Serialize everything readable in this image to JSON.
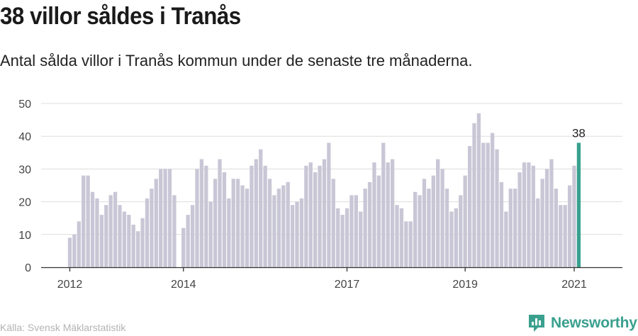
{
  "header": {
    "title": "38 villor såldes i Tranås",
    "subtitle": "Antal sålda villor i Tranås kommun under de senaste tre månaderna."
  },
  "footer": {
    "source": "Källa: Svensk Mäklarstatistik",
    "brand": "Newsworthy",
    "brand_icon": "newsworthy-logo-icon"
  },
  "colors": {
    "bar": "#c9c7d6",
    "highlight": "#3aa08e",
    "grid": "#dddddd",
    "axis": "#333333",
    "brand": "#3aa08e"
  },
  "chart_data": {
    "type": "bar",
    "title": "",
    "xlabel": "",
    "ylabel": "",
    "ylim": [
      0,
      50
    ],
    "yticks": [
      0,
      10,
      20,
      30,
      40,
      50
    ],
    "xtick_labels": [
      "2012",
      "2014",
      "2017",
      "2019",
      "2021"
    ],
    "grid": true,
    "series": [
      {
        "values": [
          9,
          10,
          14,
          28,
          28,
          23,
          21,
          16,
          19,
          22,
          23,
          19,
          17,
          16,
          13,
          11,
          15,
          21,
          24,
          27,
          30,
          30,
          30,
          22,
          null,
          12,
          16,
          19,
          30,
          33,
          31,
          20,
          27,
          33,
          29,
          21,
          27,
          27,
          25,
          24,
          31,
          33,
          36,
          31,
          27,
          22,
          24,
          25,
          26,
          19,
          20,
          21,
          31,
          32,
          29,
          31,
          33,
          38,
          27,
          18,
          16,
          18,
          22,
          22,
          17,
          24,
          26,
          32,
          28,
          38,
          32,
          33,
          19,
          18,
          14,
          14,
          23,
          22,
          27,
          24,
          28,
          33,
          30,
          24,
          17,
          18,
          22,
          28,
          37,
          44,
          47,
          38,
          38,
          41,
          36,
          26,
          17,
          24,
          24,
          29,
          32,
          32,
          31,
          21,
          27,
          30,
          33,
          24,
          19,
          19,
          25,
          31,
          38
        ]
      }
    ],
    "annotations": [
      {
        "label": "38",
        "value": 38,
        "highlight": "last"
      }
    ]
  }
}
